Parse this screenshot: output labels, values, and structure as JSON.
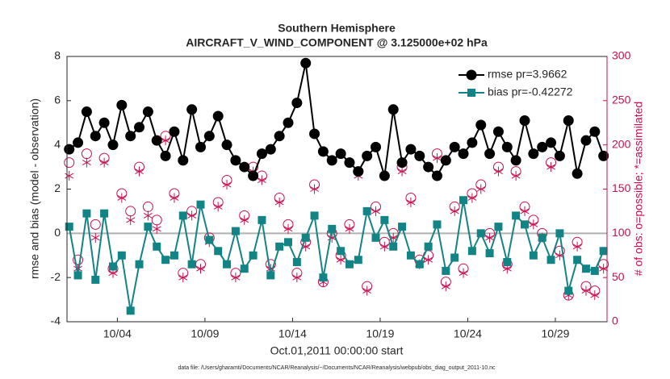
{
  "chart_data": {
    "type": "line",
    "title": "Southern Hemisphere",
    "subtitle": "AIRCRAFT_V_WIND_COMPONENT @ 3.125000e+02 hPa",
    "x_label": "Oct.01,2011 00:00:00 start",
    "y_label": "rmse and bias (model - observation)",
    "y2_label": "# of obs: o=possible; *=assimilated",
    "footnote": "data file: /Users/gharamti/Documents/NCAR/Reanalysis/~/Documents/NCAR/Reanalysis/webpub/obs_diag_output_2011-10.nc",
    "legend": "northeast",
    "x": [
      1.25,
      1.75,
      2.25,
      2.75,
      3.25,
      3.75,
      4.25,
      4.75,
      5.25,
      5.75,
      6.25,
      6.75,
      7.25,
      7.75,
      8.25,
      8.75,
      9.25,
      9.75,
      10.25,
      10.75,
      11.25,
      11.75,
      12.25,
      12.75,
      13.25,
      13.75,
      14.25,
      14.75,
      15.25,
      15.75,
      16.25,
      16.75,
      17.25,
      17.75,
      18.25,
      18.75,
      19.25,
      19.75,
      20.25,
      20.75,
      21.25,
      21.75,
      22.25,
      22.75,
      23.25,
      23.75,
      24.25,
      24.75,
      25.25,
      25.75,
      26.25,
      26.75,
      27.25,
      27.75,
      28.25,
      28.75,
      29.25,
      29.75,
      30.25,
      30.75,
      31.25,
      31.75
    ],
    "xlim": [
      1.125,
      31.95
    ],
    "xticks": [
      {
        "value": 4,
        "label": "10/04"
      },
      {
        "value": 9,
        "label": "10/09"
      },
      {
        "value": 14,
        "label": "10/14"
      },
      {
        "value": 19,
        "label": "10/19"
      },
      {
        "value": 24,
        "label": "10/24"
      },
      {
        "value": 29,
        "label": "10/29"
      }
    ],
    "ylim": [
      -4,
      8
    ],
    "yticks": [
      -4,
      -2,
      0,
      2,
      4,
      6,
      8
    ],
    "y2lim": [
      0,
      300
    ],
    "y2ticks": [
      0,
      50,
      100,
      150,
      200,
      250,
      300
    ],
    "series": [
      {
        "name": "rmse pr=3.9662",
        "color": "#000000",
        "marker": "circle",
        "line": true,
        "values": [
          3.8,
          4.1,
          5.5,
          4.4,
          5.0,
          4.0,
          5.8,
          4.4,
          4.8,
          5.5,
          4.2,
          3.5,
          4.6,
          3.3,
          5.6,
          3.9,
          4.4,
          5.3,
          4.0,
          3.3,
          3.0,
          2.6,
          3.6,
          3.8,
          4.4,
          5.0,
          5.9,
          7.7,
          4.5,
          3.7,
          3.3,
          3.6,
          3.2,
          2.8,
          3.5,
          3.9,
          2.6,
          5.6,
          3.2,
          3.8,
          3.5,
          3.0,
          2.6,
          3.3,
          3.9,
          3.6,
          4.1,
          4.9,
          3.6,
          4.6,
          3.9,
          3.3,
          5.1,
          3.6,
          3.9,
          4.1,
          3.5,
          5.1,
          2.7,
          4.2,
          4.6,
          3.5
        ]
      },
      {
        "name": "bias pr=-0.42272",
        "color": "#138485",
        "marker": "square",
        "line": true,
        "values": [
          0.3,
          -1.9,
          0.9,
          -2.1,
          0.9,
          -1.5,
          -1.0,
          -3.5,
          -1.4,
          0.3,
          -0.6,
          -1.2,
          -1.0,
          0.8,
          -1.4,
          1.3,
          -0.3,
          -0.8,
          -1.4,
          0.1,
          -1.6,
          -1.0,
          0.6,
          -1.9,
          -0.6,
          -0.4,
          -1.3,
          -0.2,
          0.8,
          -2.0,
          0.2,
          -0.8,
          -1.4,
          -1.2,
          1.0,
          -0.2,
          0.6,
          -0.6,
          0.3,
          -1.0,
          -1.4,
          -0.6,
          0.4,
          -1.7,
          -1.1,
          1.5,
          -0.8,
          0.0,
          -0.9,
          0.3,
          -1.3,
          0.8,
          0.4,
          -1.0,
          -0.2,
          -1.2,
          0.0,
          -2.6,
          -1.2,
          -1.6,
          -1.7,
          -0.8
        ]
      },
      {
        "color": "#c8104e",
        "marker": "open-circle",
        "line": false,
        "axis": "y2",
        "values": [
          180,
          70,
          190,
          110,
          185,
          60,
          145,
          125,
          175,
          130,
          115,
          210,
          145,
          55,
          125,
          65,
          95,
          135,
          160,
          55,
          120,
          175,
          165,
          65,
          140,
          110,
          55,
          90,
          155,
          45,
          100,
          75,
          110,
          170,
          40,
          130,
          90,
          100,
          175,
          140,
          70,
          75,
          190,
          45,
          130,
          60,
          145,
          155,
          100,
          175,
          65,
          170,
          130,
          115,
          100,
          180,
          80,
          30,
          90,
          40,
          35,
          65
        ]
      },
      {
        "color": "#c8104e",
        "marker": "asterisk",
        "line": false,
        "axis": "y2",
        "values": [
          165,
          60,
          180,
          95,
          180,
          55,
          140,
          115,
          170,
          120,
          105,
          205,
          140,
          50,
          120,
          60,
          90,
          130,
          155,
          50,
          115,
          170,
          160,
          60,
          135,
          105,
          50,
          85,
          150,
          45,
          95,
          70,
          105,
          165,
          35,
          125,
          85,
          95,
          170,
          135,
          65,
          70,
          185,
          40,
          125,
          55,
          140,
          150,
          95,
          170,
          60,
          165,
          125,
          110,
          95,
          175,
          75,
          30,
          85,
          35,
          30,
          60
        ]
      }
    ]
  }
}
